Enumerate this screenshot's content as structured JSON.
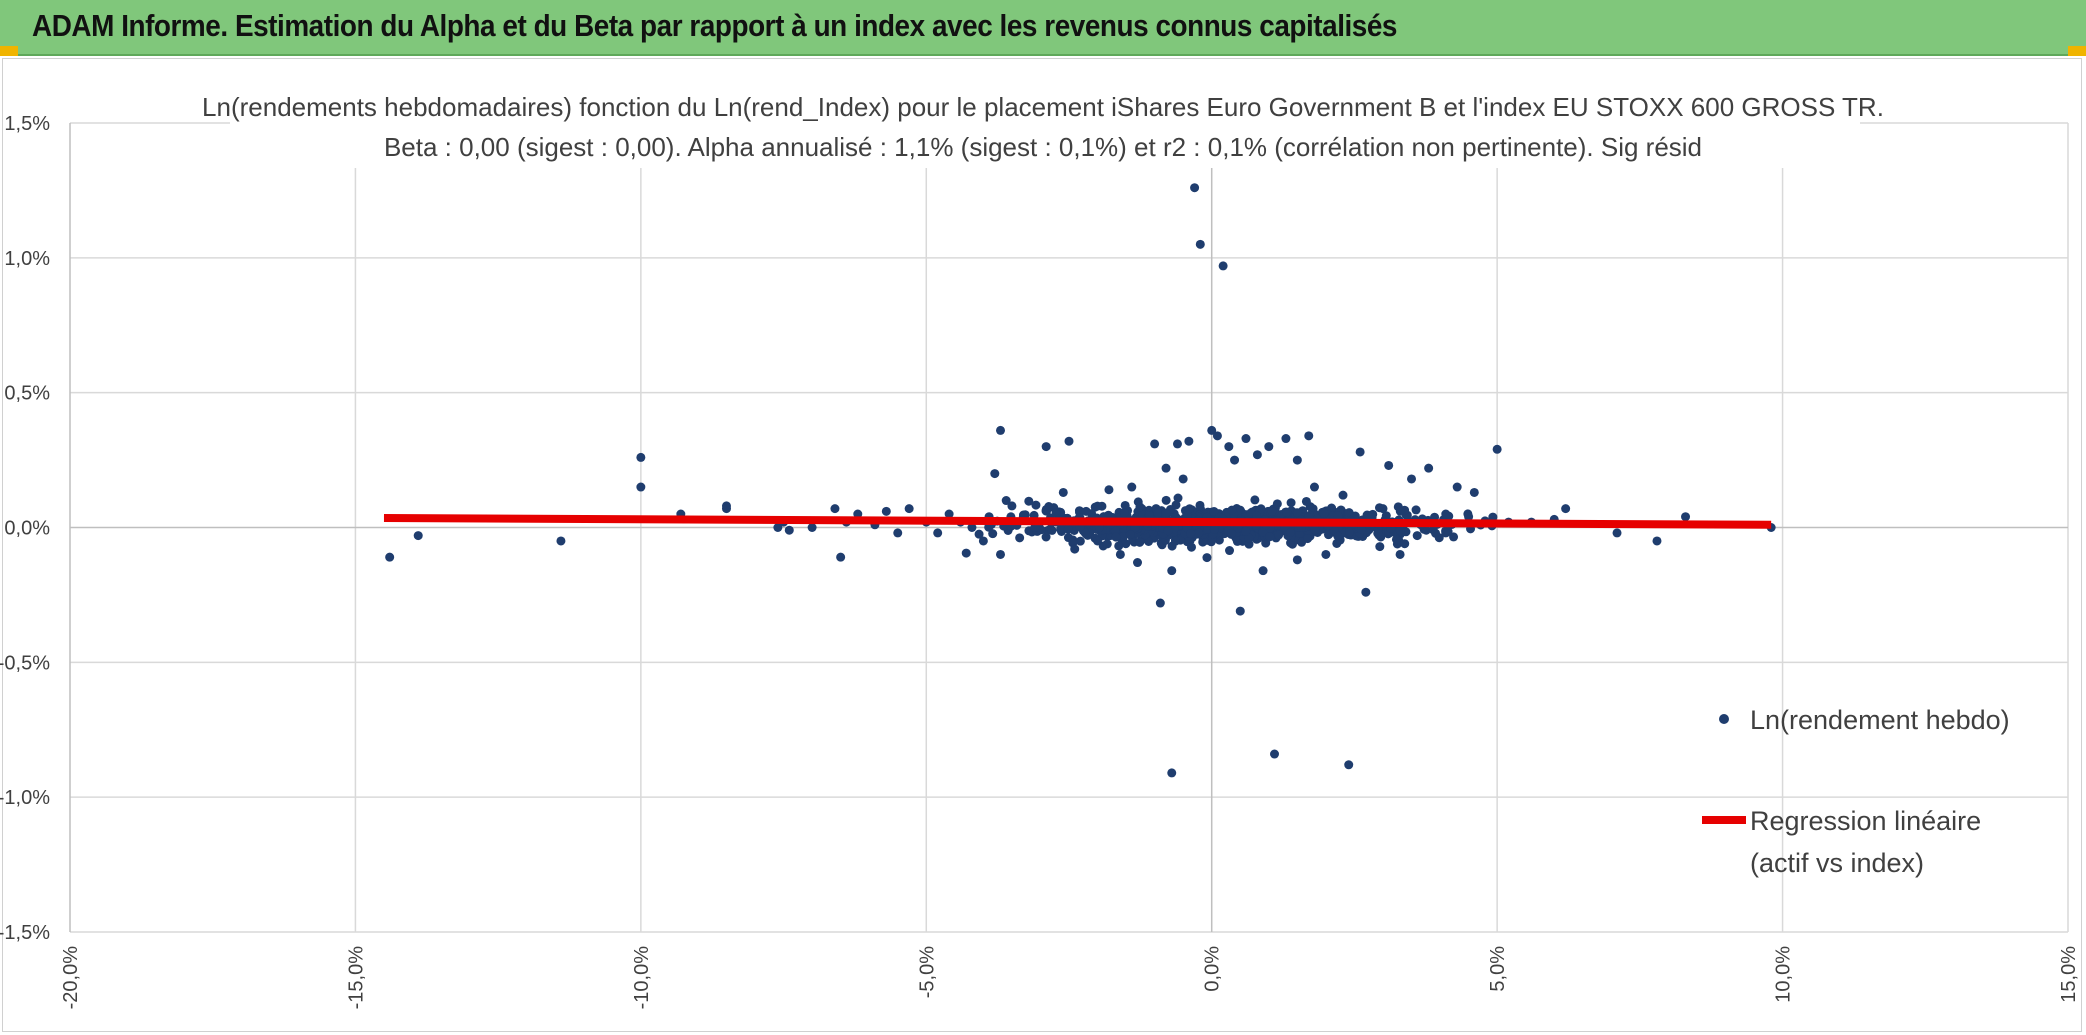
{
  "banner": {
    "title": "ADAM Informe. Estimation du Alpha et du Beta par rapport à un index avec les revenus connus capitalisés",
    "color": "#80c77b"
  },
  "chart_data": {
    "type": "scatter",
    "title": "Ln(rendements hebdomadaires) fonction du Ln(rend_Index) pour le placement iShares Euro Government B et l'index EU STOXX 600 GROSS TR.",
    "subtitle": "Beta : 0,00 (sigest : 0,00). Alpha annualisé : 1,1% (sigest : 0,1%) et r2 : 0,1% (corrélation non pertinente). Sig résid",
    "xlim": [
      -20,
      15
    ],
    "ylim": [
      -1.5,
      1.5
    ],
    "x_ticks": [
      -20,
      -15,
      -10,
      -5,
      0,
      5,
      10,
      15
    ],
    "y_ticks": [
      1.5,
      1.0,
      0.5,
      0.0,
      -0.5,
      -1.0,
      -1.5
    ],
    "x_tick_labels": [
      "-20,0%",
      "-15,0%",
      "-10,0%",
      "-5,0%",
      "0,0%",
      "5,0%",
      "10,0%",
      "15,0%"
    ],
    "y_tick_labels": [
      "1,5%",
      "1,0%",
      "0,5%",
      "0,0%",
      "-0,5%",
      "-1,0%",
      "-1,5%"
    ],
    "grid": true,
    "legend_position": "right",
    "series": [
      {
        "name": "Ln(rendement hebdo)",
        "kind": "scatter",
        "color": "#1f3d6e",
        "points": [
          [
            -14.4,
            -0.11
          ],
          [
            -13.9,
            -0.03
          ],
          [
            -11.4,
            -0.05
          ],
          [
            -10.0,
            0.26
          ],
          [
            -10.0,
            0.15
          ],
          [
            -9.3,
            0.05
          ],
          [
            -8.5,
            0.08
          ],
          [
            -8.5,
            0.07
          ],
          [
            -7.6,
            0.0
          ],
          [
            -7.5,
            0.02
          ],
          [
            -7.4,
            -0.01
          ],
          [
            -7.0,
            0.0
          ],
          [
            -6.6,
            0.07
          ],
          [
            -6.5,
            -0.11
          ],
          [
            -6.4,
            0.02
          ],
          [
            -6.2,
            0.05
          ],
          [
            -5.9,
            0.01
          ],
          [
            -5.7,
            0.06
          ],
          [
            -5.5,
            -0.02
          ],
          [
            -5.3,
            0.07
          ],
          [
            -5.0,
            0.02
          ],
          [
            -4.8,
            -0.02
          ],
          [
            -4.6,
            0.05
          ],
          [
            -4.4,
            0.02
          ],
          [
            -4.2,
            0.0
          ],
          [
            -4.0,
            -0.05
          ],
          [
            -3.9,
            0.04
          ],
          [
            -3.7,
            -0.1
          ],
          [
            -3.6,
            0.1
          ],
          [
            -3.7,
            0.36
          ],
          [
            -3.8,
            0.2
          ],
          [
            -3.5,
            0.08
          ],
          [
            -3.3,
            0.04
          ],
          [
            -3.1,
            0.0
          ],
          [
            -2.9,
            0.3
          ],
          [
            -2.5,
            0.32
          ],
          [
            -2.6,
            0.13
          ],
          [
            -2.4,
            -0.08
          ],
          [
            -2.2,
            0.06
          ],
          [
            -1.8,
            0.14
          ],
          [
            -1.6,
            -0.1
          ],
          [
            -1.4,
            0.15
          ],
          [
            -1.3,
            -0.13
          ],
          [
            -1.0,
            0.31
          ],
          [
            -0.9,
            -0.28
          ],
          [
            -0.8,
            0.22
          ],
          [
            -0.7,
            -0.16
          ],
          [
            -0.6,
            0.31
          ],
          [
            -0.5,
            0.18
          ],
          [
            -0.4,
            0.32
          ],
          [
            -0.3,
            1.26
          ],
          [
            -0.2,
            1.05
          ],
          [
            0.0,
            0.36
          ],
          [
            0.1,
            0.34
          ],
          [
            0.2,
            0.97
          ],
          [
            0.3,
            0.3
          ],
          [
            0.4,
            0.25
          ],
          [
            0.5,
            -0.31
          ],
          [
            0.6,
            0.33
          ],
          [
            0.8,
            0.27
          ],
          [
            0.9,
            -0.16
          ],
          [
            1.0,
            0.3
          ],
          [
            1.3,
            0.33
          ],
          [
            1.5,
            0.25
          ],
          [
            1.7,
            0.34
          ],
          [
            1.8,
            0.15
          ],
          [
            2.0,
            -0.1
          ],
          [
            2.3,
            0.12
          ],
          [
            2.6,
            0.28
          ],
          [
            2.7,
            -0.24
          ],
          [
            3.0,
            0.07
          ],
          [
            3.1,
            0.23
          ],
          [
            3.3,
            -0.1
          ],
          [
            3.5,
            0.18
          ],
          [
            3.8,
            0.22
          ],
          [
            4.1,
            0.05
          ],
          [
            4.3,
            0.15
          ],
          [
            4.6,
            0.13
          ],
          [
            5.0,
            0.29
          ],
          [
            5.2,
            0.02
          ],
          [
            5.6,
            0.02
          ],
          [
            6.0,
            0.03
          ],
          [
            6.2,
            0.07
          ],
          [
            7.1,
            -0.02
          ],
          [
            7.8,
            -0.05
          ],
          [
            8.3,
            0.04
          ],
          [
            9.8,
            0.0
          ],
          [
            -0.7,
            -0.91
          ],
          [
            1.1,
            -0.84
          ],
          [
            2.4,
            -0.88
          ],
          [
            4.1,
            -0.02
          ],
          [
            4.5,
            0.04
          ],
          [
            3.6,
            -0.03
          ],
          [
            -2.0,
            -0.05
          ],
          [
            1.5,
            -0.12
          ]
        ]
      },
      {
        "name": "Regression linéaire (actif vs index)",
        "kind": "line",
        "color": "#e60000",
        "points": [
          [
            -14.5,
            0.035
          ],
          [
            9.8,
            0.01
          ]
        ]
      }
    ]
  },
  "legend": {
    "scatter_label": "Ln(rendement hebdo)",
    "line_label_1": "Regression linéaire",
    "line_label_2": "(actif vs index)"
  }
}
